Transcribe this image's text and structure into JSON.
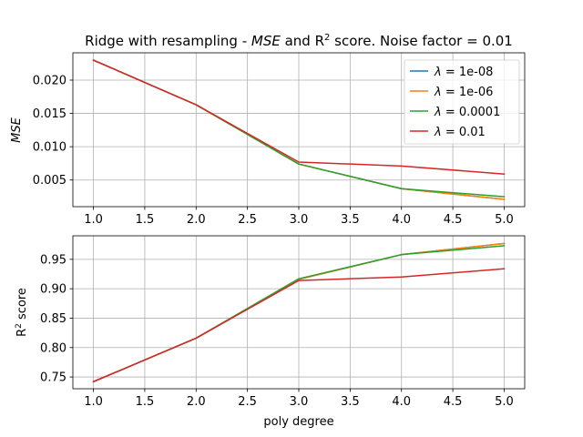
{
  "chart_data": {
    "title_prefix": "Ridge with resampling - ",
    "title_mse": "MSE",
    "title_mid": " and R",
    "title_sup": "2",
    "title_suffix": " score. Noise factor = 0.01",
    "x_label": "poly degree",
    "legend": {
      "position": "upper-right",
      "entries": [
        {
          "prefix": "λ",
          "label": " = 1e-08",
          "color": "#1f77b4"
        },
        {
          "prefix": "λ",
          "label": " = 1e-06",
          "color": "#ff7f0e"
        },
        {
          "prefix": "λ",
          "label": " = 0.0001",
          "color": "#2ca02c"
        },
        {
          "prefix": "λ",
          "label": " = 0.01",
          "color": "#d62728"
        }
      ]
    },
    "charts": [
      {
        "type": "line",
        "ylabel": "MSE",
        "ylabel_italic": true,
        "x": [
          1,
          2,
          3,
          4,
          5
        ],
        "xlim": [
          0.8,
          5.2
        ],
        "ylim": [
          0.001,
          0.0241
        ],
        "grid": true,
        "xticks": [
          "1.0",
          "1.5",
          "2.0",
          "2.5",
          "3.0",
          "3.5",
          "4.0",
          "4.5",
          "5.0"
        ],
        "yticks": [
          "0.005",
          "0.010",
          "0.015",
          "0.020"
        ],
        "series": [
          {
            "name": "λ = 1e-08",
            "color": "#1f77b4",
            "values": [
              0.023,
              0.0163,
              0.0074,
              0.0037,
              0.0021
            ]
          },
          {
            "name": "λ = 1e-06",
            "color": "#ff7f0e",
            "values": [
              0.023,
              0.0163,
              0.0074,
              0.0037,
              0.0021
            ]
          },
          {
            "name": "λ = 0.0001",
            "color": "#2ca02c",
            "values": [
              0.023,
              0.0163,
              0.0074,
              0.0037,
              0.0025
            ]
          },
          {
            "name": "λ = 0.01",
            "color": "#d62728",
            "values": [
              0.023,
              0.0163,
              0.0077,
              0.0071,
              0.0059
            ]
          }
        ]
      },
      {
        "type": "line",
        "ylabel": "R",
        "ylabel_sup": "2",
        "ylabel_suffix": " score",
        "x": [
          1,
          2,
          3,
          4,
          5
        ],
        "xlim": [
          0.8,
          5.2
        ],
        "ylim": [
          0.73,
          0.99
        ],
        "grid": true,
        "xticks": [
          "1.0",
          "1.5",
          "2.0",
          "2.5",
          "3.0",
          "3.5",
          "4.0",
          "4.5",
          "5.0"
        ],
        "yticks": [
          "0.75",
          "0.80",
          "0.85",
          "0.90",
          "0.95"
        ],
        "series": [
          {
            "name": "λ = 1e-08",
            "color": "#1f77b4",
            "values": [
              0.742,
              0.816,
              0.916,
              0.958,
              0.977
            ]
          },
          {
            "name": "λ = 1e-06",
            "color": "#ff7f0e",
            "values": [
              0.742,
              0.816,
              0.916,
              0.958,
              0.977
            ]
          },
          {
            "name": "λ = 0.0001",
            "color": "#2ca02c",
            "values": [
              0.742,
              0.816,
              0.917,
              0.958,
              0.973
            ]
          },
          {
            "name": "λ = 0.01",
            "color": "#d62728",
            "values": [
              0.742,
              0.816,
              0.914,
              0.92,
              0.934
            ]
          }
        ]
      }
    ]
  }
}
